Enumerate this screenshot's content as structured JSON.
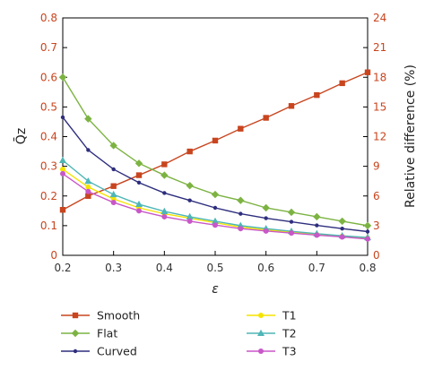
{
  "chart_data": {
    "type": "line",
    "xlabel": "ε",
    "ylabel_left": "Q̄z",
    "ylabel_right": "Relative difference (%)",
    "xlim": [
      0.2,
      0.8
    ],
    "ylim_left": [
      0,
      0.8
    ],
    "ylim_right": [
      0,
      24
    ],
    "x_ticks": [
      "0.2",
      "0.3",
      "0.4",
      "0.5",
      "0.6",
      "0.7",
      "0.8"
    ],
    "y_ticks_left": [
      "0",
      "0.1",
      "0.2",
      "0.3",
      "0.4",
      "0.5",
      "0.6",
      "0.7",
      "0.8"
    ],
    "y_ticks_right": [
      "0",
      "3",
      "6",
      "9",
      "12",
      "15",
      "18",
      "21",
      "24"
    ],
    "x": [
      0.2,
      0.25,
      0.3,
      0.35,
      0.4,
      0.45,
      0.5,
      0.55,
      0.6,
      0.65,
      0.7,
      0.75,
      0.8
    ],
    "grid": false,
    "legend_position": "bottom",
    "series": [
      {
        "name": "Smooth",
        "axis": "right",
        "color": "#c8451f",
        "marker": "square",
        "values": [
          4.6,
          6.0,
          7.0,
          8.1,
          9.2,
          10.5,
          11.6,
          12.8,
          13.9,
          15.1,
          16.2,
          17.4,
          18.5
        ]
      },
      {
        "name": "Flat",
        "axis": "left",
        "color": "#7cb342",
        "marker": "diamond",
        "values": [
          0.6,
          0.46,
          0.37,
          0.31,
          0.27,
          0.235,
          0.205,
          0.185,
          0.16,
          0.145,
          0.13,
          0.115,
          0.1
        ]
      },
      {
        "name": "Curved",
        "axis": "left",
        "color": "#2e2e7e",
        "marker": "dot",
        "values": [
          0.465,
          0.355,
          0.29,
          0.245,
          0.21,
          0.185,
          0.16,
          0.14,
          0.125,
          0.113,
          0.101,
          0.09,
          0.08
        ]
      },
      {
        "name": "T1",
        "axis": "left",
        "color": "#f5e400",
        "marker": "circle",
        "values": [
          0.29,
          0.23,
          0.19,
          0.16,
          0.14,
          0.125,
          0.11,
          0.095,
          0.086,
          0.078,
          0.07,
          0.064,
          0.058
        ]
      },
      {
        "name": "T2",
        "axis": "left",
        "color": "#4fb6b6",
        "marker": "triangle",
        "values": [
          0.32,
          0.25,
          0.205,
          0.172,
          0.148,
          0.13,
          0.115,
          0.1,
          0.09,
          0.081,
          0.073,
          0.066,
          0.06
        ]
      },
      {
        "name": "T3",
        "axis": "left",
        "color": "#c857c8",
        "marker": "circle",
        "values": [
          0.275,
          0.215,
          0.178,
          0.15,
          0.13,
          0.115,
          0.102,
          0.09,
          0.082,
          0.075,
          0.068,
          0.062,
          0.055
        ]
      }
    ]
  }
}
